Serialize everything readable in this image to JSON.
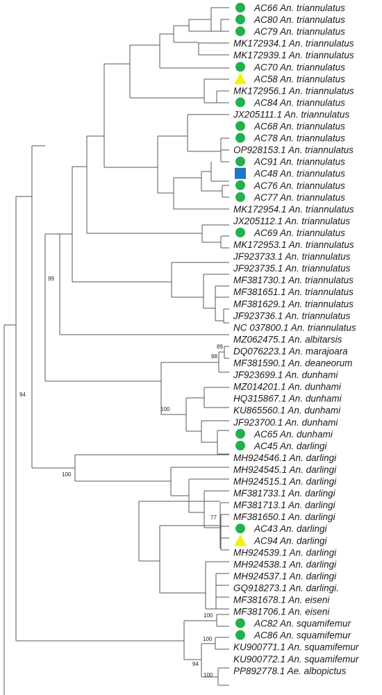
{
  "colors": {
    "circle": "#22b14c",
    "triangle": "#f4f10a",
    "square": "#1f77c4"
  },
  "leaves": [
    {
      "label": "AC66 An. triannulatus",
      "marker": "circle"
    },
    {
      "label": "AC80 An. triannulatus",
      "marker": "circle"
    },
    {
      "label": "AC79 An. triannulatus",
      "marker": "circle"
    },
    {
      "label": "MK172934.1 An. triannulatus",
      "marker": ""
    },
    {
      "label": "MK172939.1 An. triannulatus",
      "marker": ""
    },
    {
      "label": "AC70 An. triannulatus",
      "marker": "circle"
    },
    {
      "label": "AC58 An. triannulatus",
      "marker": "triangle"
    },
    {
      "label": "MK172956.1 An. triannulatus",
      "marker": ""
    },
    {
      "label": "AC84 An. triannulatus",
      "marker": "circle"
    },
    {
      "label": "JX205111.1 An. triannulatus",
      "marker": ""
    },
    {
      "label": "AC68 An. triannulatus",
      "marker": "circle"
    },
    {
      "label": "AC78 An. triannulatus",
      "marker": "circle"
    },
    {
      "label": "OP928153.1 An. triannulatus",
      "marker": ""
    },
    {
      "label": "AC91 An. triannulatus",
      "marker": "circle"
    },
    {
      "label": "AC48 An. triannulatus",
      "marker": "square"
    },
    {
      "label": "AC76 An. triannulatus",
      "marker": "circle"
    },
    {
      "label": "AC77 An. triannulatus",
      "marker": "circle"
    },
    {
      "label": "MK172954.1 An. triannulatus",
      "marker": ""
    },
    {
      "label": "JX205112.1 An. triannulatus",
      "marker": ""
    },
    {
      "label": "AC69 An. triannulatus",
      "marker": "circle"
    },
    {
      "label": "MK172953.1 An. triannulatus",
      "marker": ""
    },
    {
      "label": "JF923733.1 An. triannulatus",
      "marker": ""
    },
    {
      "label": "JF923735.1 An. triannulatus",
      "marker": ""
    },
    {
      "label": "MF381730.1 An. triannulatus",
      "marker": ""
    },
    {
      "label": "MF381651.1 An. triannulatus",
      "marker": ""
    },
    {
      "label": "MF381629.1 An. triannulatus",
      "marker": ""
    },
    {
      "label": "JF923736.1 An. triannulatus",
      "marker": ""
    },
    {
      "label": "NC 037800.1 An. triannulatus",
      "marker": ""
    },
    {
      "label": "MZ062475.1 An. albitarsis",
      "marker": ""
    },
    {
      "label": "DQ076223.1 An. marajoara",
      "marker": ""
    },
    {
      "label": "MF381590.1 An. deaneorum",
      "marker": ""
    },
    {
      "label": "JF923699.1 An. dunhami",
      "marker": ""
    },
    {
      "label": "MZ014201.1 An. dunhami",
      "marker": ""
    },
    {
      "label": "HQ315867.1 An. dunhami",
      "marker": ""
    },
    {
      "label": "KU865560.1 An. dunhami",
      "marker": ""
    },
    {
      "label": "JF923700.1 An. dunhami",
      "marker": ""
    },
    {
      "label": "AC65 An. dunhami",
      "marker": "circle"
    },
    {
      "label": "AC45 An. darlingi",
      "marker": "circle"
    },
    {
      "label": "MH924546.1 An. darlingi",
      "marker": ""
    },
    {
      "label": "MH924545.1 An. darlingi",
      "marker": ""
    },
    {
      "label": "MH924515.1 An. darlingi",
      "marker": ""
    },
    {
      "label": "MF381733.1 An. darlingi",
      "marker": ""
    },
    {
      "label": "MF381713.1 An. darlingi",
      "marker": ""
    },
    {
      "label": "MF381650.1 An. darlingi",
      "marker": ""
    },
    {
      "label": "AC43 An. darlingi",
      "marker": "circle"
    },
    {
      "label": "AC94 An. darlingi",
      "marker": "triangle"
    },
    {
      "label": "MH924539.1 An. darlingi",
      "marker": ""
    },
    {
      "label": "MH924538.1 An. darlingi",
      "marker": ""
    },
    {
      "label": "MH924537.1 An. darlingi",
      "marker": ""
    },
    {
      "label": "GQ918273.1 An. darlingi.",
      "marker": ""
    },
    {
      "label": "MF381678.1 An. eiseni",
      "marker": ""
    },
    {
      "label": "MF381706.1 An. eiseni",
      "marker": ""
    },
    {
      "label": "AC82 An. squamifemur",
      "marker": "circle"
    },
    {
      "label": "AC86 An. squamifemur",
      "marker": "circle"
    },
    {
      "label": "KU900771.1 An. squamifemur",
      "marker": ""
    },
    {
      "label": "KU900772.1 An. squamifemur",
      "marker": ""
    },
    {
      "label": "PP892778.1 Ae. albopictus",
      "marker": ""
    }
  ],
  "support_values": [
    "99",
    "94",
    "89",
    "98",
    "100",
    "100",
    "77",
    "100",
    "100",
    "94",
    "100"
  ]
}
